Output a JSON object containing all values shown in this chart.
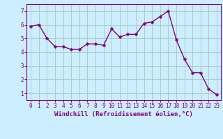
{
  "x": [
    0,
    1,
    2,
    3,
    4,
    5,
    6,
    7,
    8,
    9,
    10,
    11,
    12,
    13,
    14,
    15,
    16,
    17,
    18,
    19,
    20,
    21,
    22,
    23
  ],
  "y": [
    5.9,
    6.0,
    5.0,
    4.4,
    4.4,
    4.2,
    4.2,
    4.6,
    4.6,
    4.5,
    5.7,
    5.1,
    5.3,
    5.3,
    6.1,
    6.2,
    6.6,
    7.0,
    4.9,
    3.5,
    2.5,
    2.5,
    1.3,
    0.9
  ],
  "line_color": "#800080",
  "marker_color": "#800080",
  "bg_color": "#cceeff",
  "grid_color": "#aacccc",
  "xlabel": "Windchill (Refroidissement éolien,°C)",
  "ylim": [
    0.5,
    7.5
  ],
  "xlim": [
    -0.5,
    23.5
  ],
  "yticks": [
    1,
    2,
    3,
    4,
    5,
    6,
    7
  ],
  "xticks": [
    0,
    1,
    2,
    3,
    4,
    5,
    6,
    7,
    8,
    9,
    10,
    11,
    12,
    13,
    14,
    15,
    16,
    17,
    18,
    19,
    20,
    21,
    22,
    23
  ],
  "line_width": 1.0,
  "marker_size": 2.5,
  "axis_color": "#800080",
  "tick_color": "#800080",
  "label_fontsize": 6.5,
  "tick_fontsize": 5.5
}
